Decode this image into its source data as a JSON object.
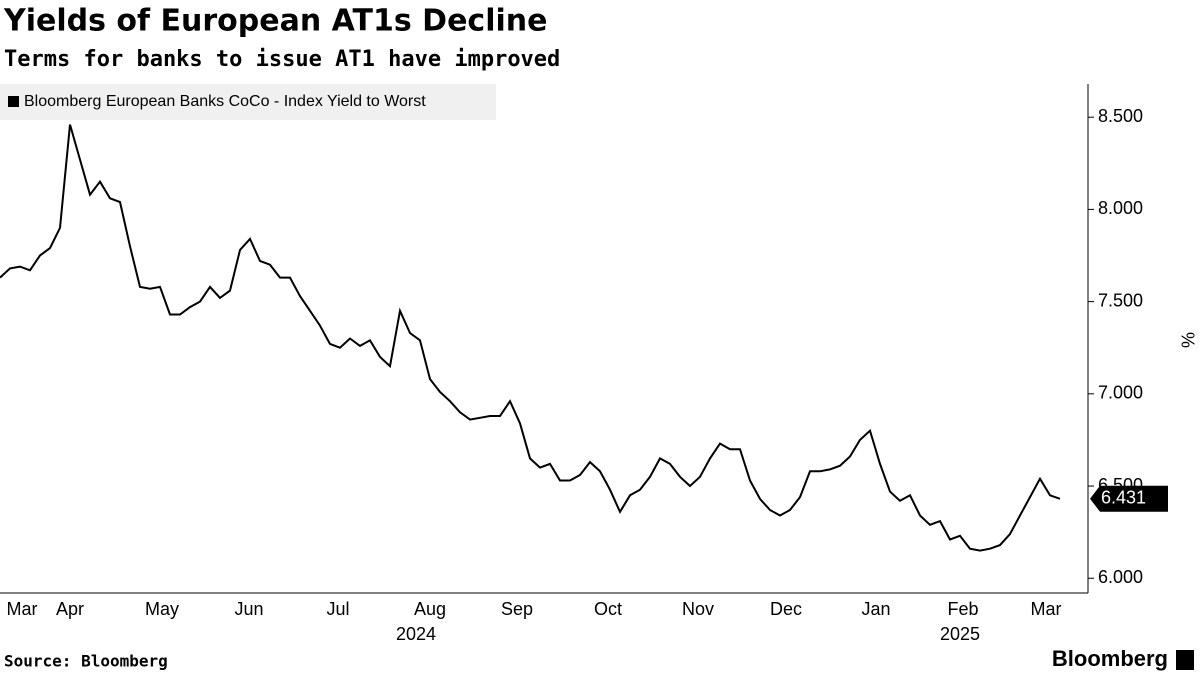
{
  "chart_data": {
    "type": "line",
    "title": "Yields of European AT1s Decline",
    "subtitle": "Terms for banks to issue AT1 have improved",
    "y_label": "%",
    "source": "Source: Bloomberg",
    "brand": "Bloomberg",
    "series": [
      {
        "name": "Bloomberg European Banks CoCo - Index Yield to Worst",
        "color": "#000000",
        "values": [
          7.63,
          7.68,
          7.69,
          7.67,
          7.75,
          7.79,
          7.9,
          8.46,
          8.27,
          8.08,
          8.15,
          8.06,
          8.04,
          7.8,
          7.58,
          7.57,
          7.58,
          7.43,
          7.43,
          7.47,
          7.5,
          7.58,
          7.52,
          7.56,
          7.78,
          7.84,
          7.72,
          7.7,
          7.63,
          7.63,
          7.53,
          7.45,
          7.37,
          7.27,
          7.25,
          7.3,
          7.26,
          7.29,
          7.2,
          7.15,
          7.45,
          7.33,
          7.29,
          7.08,
          7.01,
          6.96,
          6.9,
          6.86,
          6.87,
          6.88,
          6.88,
          6.96,
          6.84,
          6.65,
          6.6,
          6.62,
          6.53,
          6.53,
          6.56,
          6.63,
          6.58,
          6.48,
          6.36,
          6.45,
          6.48,
          6.55,
          6.65,
          6.62,
          6.55,
          6.5,
          6.55,
          6.65,
          6.73,
          6.7,
          6.7,
          6.53,
          6.43,
          6.37,
          6.34,
          6.37,
          6.44,
          6.58,
          6.58,
          6.59,
          6.61,
          6.66,
          6.75,
          6.8,
          6.62,
          6.47,
          6.42,
          6.45,
          6.34,
          6.29,
          6.31,
          6.21,
          6.23,
          6.16,
          6.15,
          6.16,
          6.18,
          6.24,
          6.34,
          6.44,
          6.54,
          6.45,
          6.431
        ]
      }
    ],
    "xlim": [
      0,
      108
    ],
    "xticks": [
      {
        "value": 2.2,
        "label": "Mar"
      },
      {
        "value": 7,
        "label": "Apr"
      },
      {
        "value": 16.2,
        "label": "May"
      },
      {
        "value": 24.9,
        "label": "Jun"
      },
      {
        "value": 33.8,
        "label": "Jul"
      },
      {
        "value": 43,
        "label": "Aug"
      },
      {
        "value": 51.7,
        "label": "Sep"
      },
      {
        "value": 60.8,
        "label": "Oct"
      },
      {
        "value": 69.8,
        "label": "Nov"
      },
      {
        "value": 78.6,
        "label": "Dec"
      },
      {
        "value": 87.6,
        "label": "Jan"
      },
      {
        "value": 96.3,
        "label": "Feb"
      },
      {
        "value": 104.6,
        "label": "Mar"
      }
    ],
    "year_labels": [
      {
        "value": 41.6,
        "label": "2024"
      },
      {
        "value": 96,
        "label": "2025"
      }
    ],
    "ylim": [
      5.92,
      8.68
    ],
    "yticks": [
      {
        "value": 6,
        "label": "6.000"
      },
      {
        "value": 6.5,
        "label": "6.500"
      },
      {
        "value": 7,
        "label": "7.000"
      },
      {
        "value": 7.5,
        "label": "7.500"
      },
      {
        "value": 8,
        "label": "8.000"
      },
      {
        "value": 8.5,
        "label": "8.500"
      }
    ]
  }
}
